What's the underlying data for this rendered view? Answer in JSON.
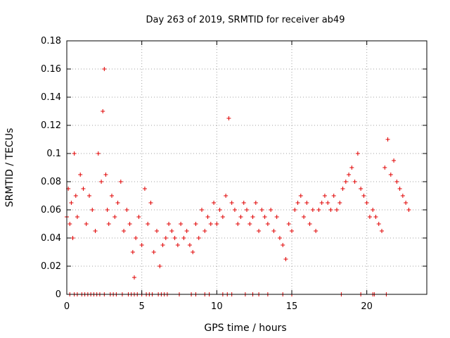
{
  "chart_data": {
    "type": "scatter",
    "title": "Day 263 of 2019, SRMTID for receiver ab49",
    "xlabel": "GPS time / hours",
    "ylabel": "SRMTID / TECUs",
    "xlim": [
      0,
      24
    ],
    "ylim": [
      0,
      0.18
    ],
    "xticks": [
      0,
      5,
      10,
      15,
      20
    ],
    "xtick_labels": [
      "0",
      "5",
      "10",
      "15",
      "20"
    ],
    "yticks": [
      0,
      0.02,
      0.04,
      0.06,
      0.08,
      0.1,
      0.12,
      0.14,
      0.16,
      0.18
    ],
    "ytick_labels": [
      "0",
      "0.02",
      "0.04",
      "0.06",
      "0.08",
      "0.1",
      "0.12",
      "0.14",
      "0.16",
      "0.18"
    ],
    "grid": true,
    "marker": "+",
    "series_color": "#e00000",
    "series": [
      {
        "name": "SRMTID",
        "x": [
          0.0,
          0.1,
          0.2,
          0.3,
          0.4,
          0.5,
          0.6,
          0.7,
          0.9,
          1.1,
          1.3,
          1.5,
          1.7,
          1.9,
          2.1,
          2.3,
          2.4,
          2.5,
          2.6,
          2.7,
          2.8,
          3.0,
          3.2,
          3.4,
          3.6,
          3.8,
          4.0,
          4.2,
          4.4,
          4.5,
          4.6,
          4.8,
          5.0,
          5.2,
          5.4,
          5.6,
          5.8,
          6.0,
          6.2,
          6.4,
          6.6,
          6.8,
          7.0,
          7.2,
          7.4,
          7.6,
          7.8,
          8.0,
          8.2,
          8.4,
          8.6,
          8.8,
          9.0,
          9.2,
          9.4,
          9.6,
          9.8,
          10.0,
          10.2,
          10.4,
          10.6,
          10.8,
          11.0,
          11.2,
          11.4,
          11.6,
          11.8,
          12.0,
          12.2,
          12.4,
          12.6,
          12.8,
          13.0,
          13.2,
          13.4,
          13.6,
          13.8,
          14.0,
          14.2,
          14.4,
          14.6,
          14.8,
          15.0,
          15.2,
          15.4,
          15.6,
          15.8,
          16.0,
          16.2,
          16.4,
          16.6,
          16.8,
          17.0,
          17.2,
          17.4,
          17.6,
          17.8,
          18.0,
          18.2,
          18.4,
          18.6,
          18.8,
          19.0,
          19.2,
          19.4,
          19.6,
          19.8,
          20.0,
          20.2,
          20.4,
          20.6,
          20.8,
          21.0,
          21.2,
          21.4,
          21.6,
          21.8,
          22.0,
          22.2,
          22.4,
          22.6,
          22.8
        ],
        "y": [
          0.055,
          0.075,
          0.05,
          0.065,
          0.04,
          0.1,
          0.07,
          0.055,
          0.085,
          0.075,
          0.05,
          0.07,
          0.06,
          0.045,
          0.1,
          0.08,
          0.13,
          0.16,
          0.085,
          0.06,
          0.05,
          0.07,
          0.055,
          0.065,
          0.08,
          0.045,
          0.06,
          0.05,
          0.03,
          0.012,
          0.04,
          0.055,
          0.035,
          0.075,
          0.05,
          0.065,
          0.03,
          0.045,
          0.02,
          0.035,
          0.04,
          0.05,
          0.045,
          0.04,
          0.035,
          0.05,
          0.04,
          0.045,
          0.035,
          0.03,
          0.05,
          0.04,
          0.06,
          0.045,
          0.055,
          0.05,
          0.065,
          0.05,
          0.06,
          0.055,
          0.07,
          0.125,
          0.065,
          0.06,
          0.05,
          0.055,
          0.065,
          0.06,
          0.05,
          0.055,
          0.065,
          0.045,
          0.06,
          0.055,
          0.05,
          0.06,
          0.045,
          0.055,
          0.04,
          0.035,
          0.025,
          0.05,
          0.045,
          0.06,
          0.065,
          0.07,
          0.055,
          0.065,
          0.05,
          0.06,
          0.045,
          0.06,
          0.065,
          0.07,
          0.065,
          0.06,
          0.07,
          0.06,
          0.065,
          0.075,
          0.08,
          0.085,
          0.09,
          0.08,
          0.1,
          0.075,
          0.07,
          0.065,
          0.055,
          0.06,
          0.055,
          0.05,
          0.045,
          0.09,
          0.11,
          0.085,
          0.095,
          0.08,
          0.075,
          0.07,
          0.065,
          0.06
        ],
        "zero_x": [
          0.2,
          0.5,
          0.7,
          1.0,
          1.2,
          1.4,
          1.6,
          1.8,
          2.0,
          2.2,
          2.5,
          2.9,
          3.1,
          3.3,
          3.7,
          4.1,
          4.3,
          4.5,
          4.7,
          5.0,
          5.3,
          5.5,
          5.7,
          6.1,
          6.3,
          6.5,
          6.7,
          7.5,
          8.3,
          8.6,
          9.2,
          9.5,
          10.4,
          10.7,
          11.0,
          11.9,
          12.4,
          12.8,
          13.4,
          14.4,
          15.0,
          18.3,
          19.6,
          20.4,
          20.5,
          21.3
        ]
      }
    ]
  }
}
